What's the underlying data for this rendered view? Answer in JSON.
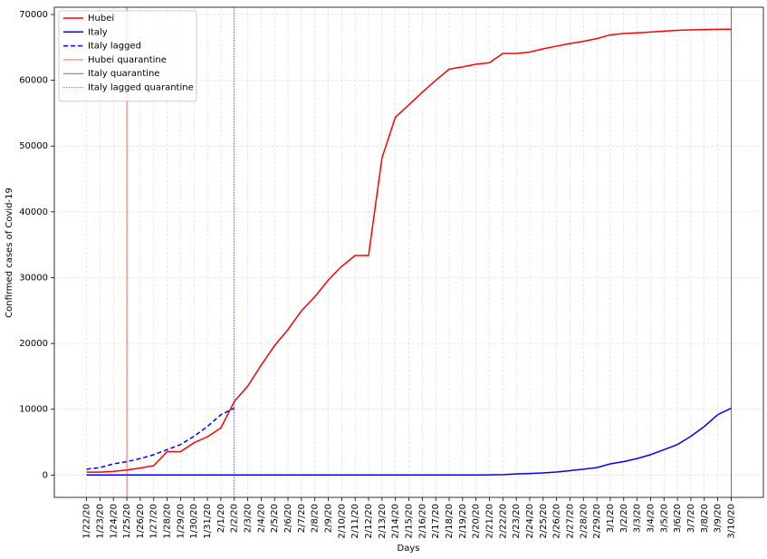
{
  "chart_data": {
    "type": "line",
    "xlabel": "Days",
    "ylabel": "Confirmed cases of Covid-19",
    "categories": [
      "1/22/20",
      "1/23/20",
      "1/24/20",
      "1/25/20",
      "1/26/20",
      "1/27/20",
      "1/28/20",
      "1/29/20",
      "1/30/20",
      "1/31/20",
      "2/1/20",
      "2/2/20",
      "2/3/20",
      "2/4/20",
      "2/5/20",
      "2/6/20",
      "2/7/20",
      "2/8/20",
      "2/9/20",
      "2/10/20",
      "2/11/20",
      "2/12/20",
      "2/13/20",
      "2/14/20",
      "2/15/20",
      "2/16/20",
      "2/17/20",
      "2/18/20",
      "2/19/20",
      "2/20/20",
      "2/21/20",
      "2/22/20",
      "2/23/20",
      "2/24/20",
      "2/25/20",
      "2/26/20",
      "2/27/20",
      "2/28/20",
      "2/29/20",
      "3/1/20",
      "3/2/20",
      "3/3/20",
      "3/4/20",
      "3/5/20",
      "3/6/20",
      "3/7/20",
      "3/8/20",
      "3/9/20",
      "3/10/20"
    ],
    "series": [
      {
        "name": "Hubei",
        "color": "#ff0000",
        "style": "solid",
        "values": [
          444,
          444,
          549,
          761,
          1058,
          1423,
          3554,
          3554,
          4903,
          5806,
          7153,
          11177,
          13522,
          16678,
          19665,
          22112,
          24953,
          27100,
          29631,
          31728,
          33366,
          33366,
          48206,
          54406,
          56249,
          58182,
          59989,
          61682,
          62031,
          62442,
          62662,
          64084,
          64084,
          64287,
          64786,
          65187,
          65596,
          65914,
          66337,
          66907,
          67103,
          67217,
          67332,
          67466,
          67592,
          67666,
          67707,
          67743,
          67760
        ]
      },
      {
        "name": "Italy",
        "color": "#0000ff",
        "style": "solid",
        "values": [
          0,
          0,
          0,
          0,
          0,
          0,
          0,
          0,
          0,
          2,
          2,
          2,
          2,
          2,
          2,
          2,
          3,
          3,
          3,
          3,
          3,
          3,
          3,
          3,
          3,
          3,
          3,
          3,
          3,
          3,
          20,
          62,
          155,
          229,
          322,
          453,
          655,
          888,
          1128,
          1694,
          2036,
          2502,
          3089,
          3858,
          4636,
          5883,
          7375,
          9172,
          10149
        ]
      },
      {
        "name": "Italy lagged",
        "color": "#0000ff",
        "style": "dashed",
        "values": [
          888,
          1128,
          1694,
          2036,
          2502,
          3089,
          3858,
          4636,
          5883,
          7375,
          9172,
          10149,
          null,
          null,
          null,
          null,
          null,
          null,
          null,
          null,
          null,
          null,
          null,
          null,
          null,
          null,
          null,
          null,
          null,
          null,
          null,
          null,
          null,
          null,
          null,
          null,
          null,
          null,
          null,
          null,
          null,
          null,
          null,
          null,
          null,
          null,
          null,
          null,
          null
        ]
      }
    ],
    "vlines": [
      {
        "name": "Hubei quarantine",
        "x": "1/25/20",
        "color": "#ff0000",
        "style": "solid"
      },
      {
        "name": "Italy quarantine",
        "x": "3/10/20",
        "color": "#0000ff",
        "style": "solid"
      },
      {
        "name": "Italy lagged quarantine",
        "x": "2/2/20",
        "color": "#0000ff",
        "style": "dotted"
      }
    ],
    "ylim": [
      -3400,
      71100
    ],
    "yticks": [
      0,
      10000,
      20000,
      30000,
      40000,
      50000,
      60000,
      70000
    ],
    "grid": true,
    "legend": "upper left"
  }
}
